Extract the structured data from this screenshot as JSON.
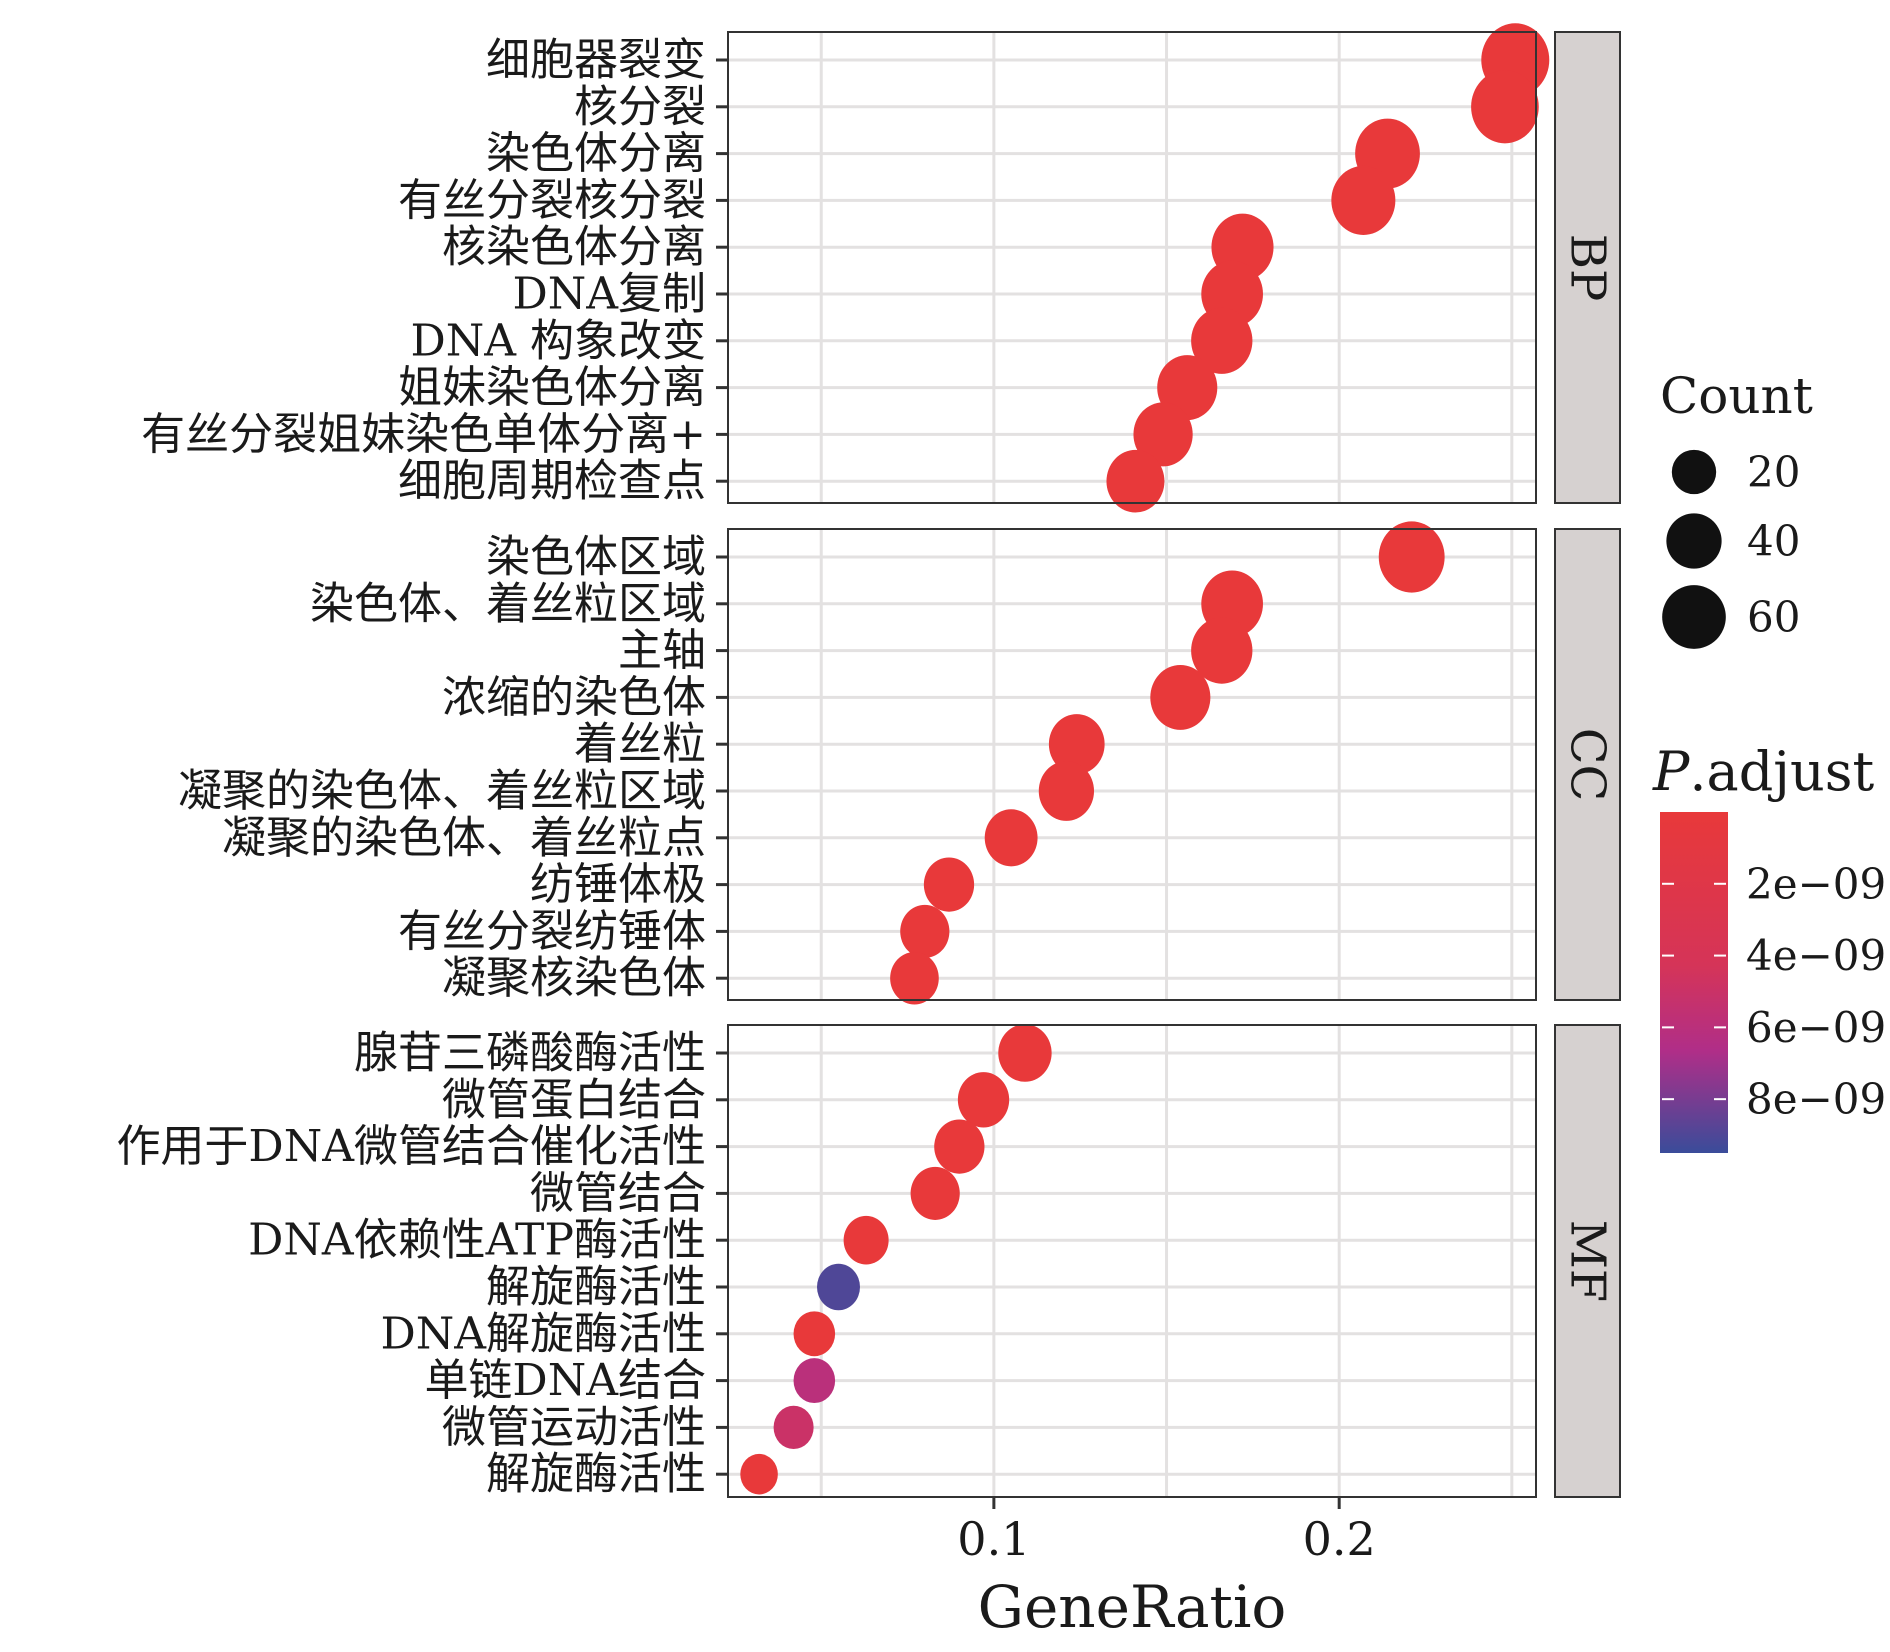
{
  "chart_data": {
    "type": "scatter",
    "xlabel": "GeneRatio",
    "x_ticks": [
      0.1,
      0.2
    ],
    "x_tick_labels": [
      "0.1",
      "0.2"
    ],
    "xlim": [
      0.023,
      0.257
    ],
    "panels": [
      {
        "name": "BP",
        "terms": [
          {
            "label": "细胞器裂变",
            "x": 0.251,
            "count": 72,
            "p_adjust": 1e-11
          },
          {
            "label": "核分裂",
            "x": 0.248,
            "count": 71,
            "p_adjust": 1e-11
          },
          {
            "label": "染色体分离",
            "x": 0.214,
            "count": 63,
            "p_adjust": 1e-11
          },
          {
            "label": "有丝分裂核分裂",
            "x": 0.207,
            "count": 61,
            "p_adjust": 1e-11
          },
          {
            "label": "核染色体分离",
            "x": 0.172,
            "count": 56,
            "p_adjust": 1e-11
          },
          {
            "label": "DNA复制",
            "x": 0.169,
            "count": 55,
            "p_adjust": 1e-11
          },
          {
            "label": "DNA 构象改变",
            "x": 0.166,
            "count": 54,
            "p_adjust": 1e-11
          },
          {
            "label": "姐妹染色体分离",
            "x": 0.156,
            "count": 51,
            "p_adjust": 1e-11
          },
          {
            "label": "有丝分裂姐妹染色单体分离+",
            "x": 0.149,
            "count": 49,
            "p_adjust": 1e-11
          },
          {
            "label": "细胞周期检查点",
            "x": 0.141,
            "count": 46,
            "p_adjust": 1e-11
          }
        ]
      },
      {
        "name": "CC",
        "terms": [
          {
            "label": "染色体区域",
            "x": 0.221,
            "count": 66,
            "p_adjust": 1e-11
          },
          {
            "label": "染色体、着丝粒区域",
            "x": 0.169,
            "count": 55,
            "p_adjust": 1e-11
          },
          {
            "label": "主轴",
            "x": 0.166,
            "count": 54,
            "p_adjust": 1e-11
          },
          {
            "label": "浓缩的染色体",
            "x": 0.154,
            "count": 51,
            "p_adjust": 1e-11
          },
          {
            "label": "着丝粒",
            "x": 0.124,
            "count": 41,
            "p_adjust": 1e-11
          },
          {
            "label": "凝聚的染色体、着丝粒区域",
            "x": 0.121,
            "count": 40,
            "p_adjust": 1e-11
          },
          {
            "label": "凝聚的染色体、着丝粒点",
            "x": 0.105,
            "count": 35,
            "p_adjust": 1e-11
          },
          {
            "label": "纺锤体极",
            "x": 0.087,
            "count": 30,
            "p_adjust": 1e-11
          },
          {
            "label": "有丝分裂纺锤体",
            "x": 0.08,
            "count": 28,
            "p_adjust": 1e-11
          },
          {
            "label": "凝聚核染色体",
            "x": 0.077,
            "count": 27,
            "p_adjust": 1e-11
          }
        ]
      },
      {
        "name": "MF",
        "terms": [
          {
            "label": "腺苷三磷酸酶活性",
            "x": 0.109,
            "count": 36,
            "p_adjust": 1e-11
          },
          {
            "label": "微管蛋白结合",
            "x": 0.097,
            "count": 32,
            "p_adjust": 1e-11
          },
          {
            "label": "作用于DNA微管结合催化活性",
            "x": 0.09,
            "count": 30,
            "p_adjust": 1e-11
          },
          {
            "label": "微管结合",
            "x": 0.083,
            "count": 28,
            "p_adjust": 1e-11
          },
          {
            "label": "DNA依赖性ATP酶活性",
            "x": 0.063,
            "count": 21,
            "p_adjust": 1e-11
          },
          {
            "label": "解旋酶活性",
            "x": 0.055,
            "count": 18,
            "p_adjust": 9e-09
          },
          {
            "label": "DNA解旋酶活性",
            "x": 0.048,
            "count": 16,
            "p_adjust": 1e-11
          },
          {
            "label": "单链DNA结合",
            "x": 0.048,
            "count": 16,
            "p_adjust": 6e-09
          },
          {
            "label": "微管运动活性",
            "x": 0.042,
            "count": 14,
            "p_adjust": 5e-09
          },
          {
            "label": "解旋酶活性",
            "x": 0.032,
            "count": 11,
            "p_adjust": 1e-11
          }
        ]
      }
    ],
    "size_legend": {
      "title": "Count",
      "breaks": [
        20,
        40,
        60
      ],
      "break_labels": [
        "20",
        "40",
        "60"
      ]
    },
    "color_legend": {
      "title_italic": "P",
      "title_rest": ".adjust",
      "min": 0,
      "max": 9.5e-09,
      "breaks": [
        2e-09,
        4e-09,
        6e-09,
        8e-09
      ],
      "break_labels": [
        "2e−09",
        "4e−09",
        "6e−09",
        "8e−09"
      ],
      "low_color": "#e8393a",
      "mid_color": "#b02e88",
      "high_color": "#3a4c9a"
    }
  }
}
